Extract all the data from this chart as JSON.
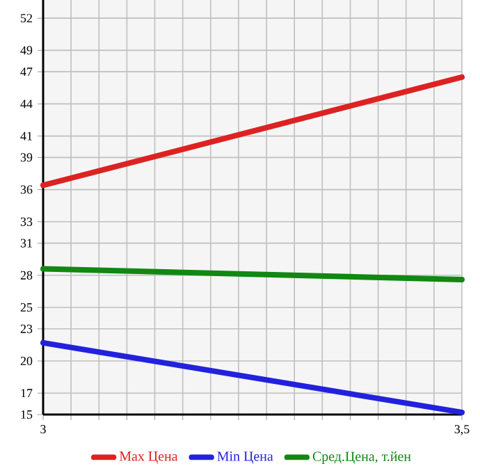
{
  "chart_data": {
    "type": "line",
    "x": [
      3,
      3.5
    ],
    "series": [
      {
        "name": "Max Цена",
        "color": "#dd2222",
        "values": [
          36.4,
          46.5
        ]
      },
      {
        "name": "Min Цена",
        "color": "#2222dd",
        "values": [
          21.7,
          15.2
        ]
      },
      {
        "name": "Сред.Цена, т.йен",
        "color": "#118811",
        "values": [
          28.6,
          27.6
        ]
      }
    ],
    "xlim": [
      3,
      3.5
    ],
    "xticks": [
      {
        "value": 3,
        "label": "3"
      },
      {
        "value": 3.0333,
        "label": null
      },
      {
        "value": 3.0667,
        "label": null
      },
      {
        "value": 3.1,
        "label": null
      },
      {
        "value": 3.1333,
        "label": null
      },
      {
        "value": 3.1667,
        "label": null
      },
      {
        "value": 3.2,
        "label": null
      },
      {
        "value": 3.2333,
        "label": null
      },
      {
        "value": 3.2667,
        "label": null
      },
      {
        "value": 3.3,
        "label": null
      },
      {
        "value": 3.3333,
        "label": null
      },
      {
        "value": 3.3667,
        "label": null
      },
      {
        "value": 3.4,
        "label": null
      },
      {
        "value": 3.4333,
        "label": null
      },
      {
        "value": 3.4667,
        "label": null
      },
      {
        "value": 3.5,
        "label": "3,5"
      }
    ],
    "ylim": [
      15,
      53.7
    ],
    "yticks": [
      15,
      17,
      20,
      23,
      25,
      28,
      31,
      33,
      36,
      39,
      41,
      44,
      47,
      49,
      52
    ],
    "grid": true,
    "legend": "bottom",
    "marker": "none",
    "line_style": "solid"
  }
}
